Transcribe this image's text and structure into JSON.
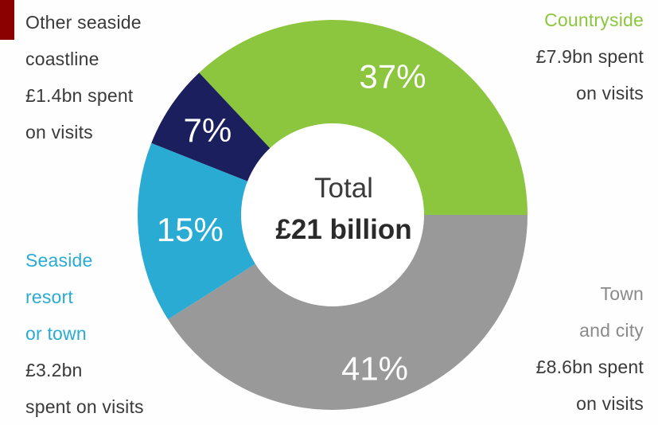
{
  "colors": {
    "countryside": "#8cc63f",
    "town_city": "#999999",
    "seaside_resort": "#29abd4",
    "other_seaside": "#1c1f5e",
    "accent_mark": "#8b0000",
    "text_dark": "#3a3a3a"
  },
  "chart_data": {
    "type": "pie",
    "donut": true,
    "center_label": {
      "line1": "Total",
      "line2": "£21 billion"
    },
    "slices": [
      {
        "key": "countryside",
        "name": "Countryside",
        "percent": 37,
        "percent_label": "37%",
        "amount_gbp_bn": 7.9,
        "callout": [
          "Countryside",
          "£7.9bn spent",
          "on visits"
        ],
        "color": "#8cc63f"
      },
      {
        "key": "town_city",
        "name": "Town and city",
        "percent": 41,
        "percent_label": "41%",
        "amount_gbp_bn": 8.6,
        "callout": [
          "Town",
          "and city",
          "£8.6bn spent",
          "on visits"
        ],
        "color": "#999999"
      },
      {
        "key": "seaside_resort",
        "name": "Seaside resort or town",
        "percent": 15,
        "percent_label": "15%",
        "amount_gbp_bn": 3.2,
        "callout": [
          "Seaside",
          "resort",
          "or town",
          "£3.2bn",
          "spent on visits"
        ],
        "color": "#29abd4"
      },
      {
        "key": "other_seaside",
        "name": "Other seaside coastline",
        "percent": 7,
        "percent_label": "7%",
        "amount_gbp_bn": 1.4,
        "callout": [
          "Other seaside",
          "coastline",
          "£1.4bn spent",
          "on visits"
        ],
        "color": "#1c1f5e"
      }
    ]
  }
}
